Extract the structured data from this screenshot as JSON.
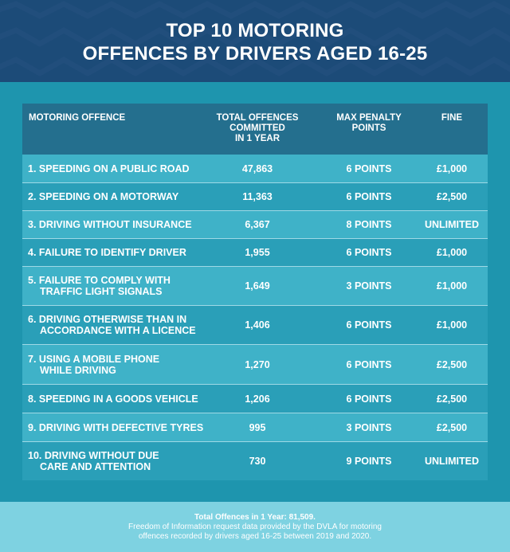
{
  "header": {
    "title_line1": "TOP 10 MOTORING",
    "title_line2": "OFFENCES BY DRIVERS AGED 16-25",
    "background_color": "#1c4b78"
  },
  "table": {
    "columns": [
      "MOTORING OFFENCE",
      "TOTAL OFFENCES COMMITTED IN 1 YEAR",
      "MAX PENALTY POINTS",
      "FINE"
    ],
    "header_lines": {
      "offence": [
        "MOTORING OFFENCE"
      ],
      "total": [
        "TOTAL OFFENCES",
        "COMMITTED",
        "IN 1 YEAR"
      ],
      "points": [
        "MAX PENALTY",
        "POINTS"
      ],
      "fine": [
        "FINE"
      ]
    },
    "rows": [
      {
        "offence_lines": [
          "1. SPEEDING ON A PUBLIC ROAD"
        ],
        "total": "47,863",
        "points": "6 POINTS",
        "fine": "£1,000"
      },
      {
        "offence_lines": [
          "2. SPEEDING ON A MOTORWAY"
        ],
        "total": "11,363",
        "points": "6 POINTS",
        "fine": "£2,500"
      },
      {
        "offence_lines": [
          "3. DRIVING WITHOUT INSURANCE"
        ],
        "total": "6,367",
        "points": "8 POINTS",
        "fine": "UNLIMITED"
      },
      {
        "offence_lines": [
          "4. FAILURE TO IDENTIFY DRIVER"
        ],
        "total": "1,955",
        "points": "6 POINTS",
        "fine": "£1,000"
      },
      {
        "offence_lines": [
          "5. FAILURE TO COMPLY WITH",
          "TRAFFIC LIGHT SIGNALS"
        ],
        "total": "1,649",
        "points": "3 POINTS",
        "fine": "£1,000"
      },
      {
        "offence_lines": [
          "6. DRIVING OTHERWISE THAN IN",
          "ACCORDANCE WITH A LICENCE"
        ],
        "total": "1,406",
        "points": "6 POINTS",
        "fine": "£1,000"
      },
      {
        "offence_lines": [
          "7. USING A MOBILE PHONE",
          "WHILE DRIVING"
        ],
        "total": "1,270",
        "points": "6 POINTS",
        "fine": "£2,500"
      },
      {
        "offence_lines": [
          "8. SPEEDING IN A GOODS VEHICLE"
        ],
        "total": "1,206",
        "points": "6 POINTS",
        "fine": "£2,500"
      },
      {
        "offence_lines": [
          "9. DRIVING WITH DEFECTIVE TYRES"
        ],
        "total": "995",
        "points": "3 POINTS",
        "fine": "£2,500"
      },
      {
        "offence_lines": [
          "10. DRIVING WITHOUT DUE",
          "CARE AND ATTENTION"
        ],
        "total": "730",
        "points": "9 POINTS",
        "fine": "UNLIMITED"
      }
    ]
  },
  "footer": {
    "total_text": "Total Offences in 1 Year: 81,509.",
    "source_line1": "Freedom of Information request data provided by the DVLA for motoring",
    "source_line2": "offences recorded by drivers aged 16-25 between 2019 and 2020."
  },
  "colors": {
    "header_bg": "#1c4b78",
    "band_bg": "#1e95ae",
    "table_header_bg": "#246f8e",
    "row_light": "#3fb2c8",
    "row_dark": "#2a9fb8",
    "footer_bg": "#7ed2e1"
  }
}
